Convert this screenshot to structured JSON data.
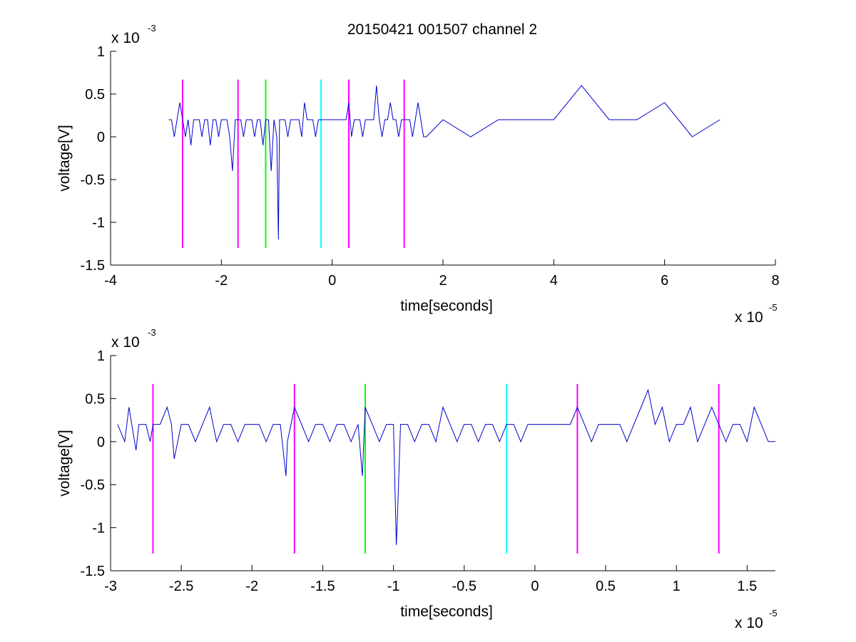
{
  "figure": {
    "title": "20150421 001507 channel 2"
  },
  "chart_data": [
    {
      "type": "line",
      "title": "20150421 001507 channel 2",
      "xlabel": "time[seconds]",
      "ylabel": "voltage[V]",
      "x_multiplier_label": "x 10",
      "x_multiplier_exp": "-5",
      "y_multiplier_label": "x 10",
      "y_multiplier_exp": "-3",
      "xlim": [
        -4,
        8
      ],
      "ylim": [
        -1.5,
        1
      ],
      "xticks": [
        "-4",
        "-2",
        "0",
        "2",
        "4",
        "6",
        "8"
      ],
      "yticks": [
        "-1.5",
        "-1",
        "-0.5",
        "0",
        "0.5",
        "1"
      ],
      "grid": false,
      "series": [
        {
          "color": "#0000cc",
          "x": [
            -2.95,
            -2.9,
            -2.85,
            -2.8,
            -2.75,
            -2.7,
            -2.65,
            -2.6,
            -2.55,
            -2.5,
            -2.45,
            -2.4,
            -2.35,
            -2.3,
            -2.25,
            -2.2,
            -2.15,
            -2.1,
            -2.05,
            -2.0,
            -1.95,
            -1.9,
            -1.85,
            -1.8,
            -1.75,
            -1.7,
            -1.65,
            -1.6,
            -1.55,
            -1.5,
            -1.45,
            -1.4,
            -1.35,
            -1.3,
            -1.25,
            -1.2,
            -1.15,
            -1.1,
            -1.05,
            -1.0,
            -0.97,
            -0.95,
            -0.9,
            -0.85,
            -0.8,
            -0.75,
            -0.7,
            -0.65,
            -0.6,
            -0.55,
            -0.5,
            -0.45,
            -0.4,
            -0.35,
            -0.3,
            -0.25,
            -0.2,
            -0.15,
            -0.1,
            -0.05,
            0.0,
            0.05,
            0.1,
            0.15,
            0.2,
            0.25,
            0.3,
            0.35,
            0.4,
            0.45,
            0.5,
            0.55,
            0.6,
            0.65,
            0.7,
            0.75,
            0.8,
            0.85,
            0.9,
            0.95,
            1.0,
            1.05,
            1.1,
            1.15,
            1.2,
            1.25,
            1.3,
            1.35,
            1.4,
            1.45,
            1.5,
            1.55,
            1.6,
            1.65,
            1.7
          ],
          "y": [
            0.2,
            0.2,
            0.0,
            0.2,
            0.4,
            0.2,
            0.0,
            0.2,
            -0.1,
            0.2,
            0.2,
            0.2,
            0.0,
            0.2,
            0.2,
            -0.1,
            0.2,
            0.2,
            0.0,
            0.2,
            0.2,
            0.2,
            0.0,
            -0.4,
            0.2,
            0.2,
            0.2,
            0.0,
            0.2,
            0.2,
            0.2,
            0.0,
            0.2,
            0.2,
            -0.1,
            0.2,
            0.2,
            -0.4,
            0.2,
            0.0,
            -1.2,
            0.2,
            0.2,
            0.2,
            0.0,
            0.2,
            0.2,
            0.2,
            0.2,
            0.0,
            0.4,
            0.2,
            0.2,
            0.2,
            0.0,
            0.2,
            0.2,
            0.2,
            0.2,
            0.2,
            0.2,
            0.2,
            0.2,
            0.2,
            0.2,
            0.2,
            0.4,
            0.0,
            0.2,
            0.2,
            0.2,
            0.0,
            0.2,
            0.2,
            0.2,
            0.2,
            0.6,
            0.2,
            0.0,
            0.2,
            0.2,
            0.4,
            0.2,
            0.2,
            0.0,
            0.2,
            0.2,
            0.2,
            0.2,
            0.0,
            0.2,
            0.4,
            0.2,
            0.0,
            0.0
          ]
        }
      ],
      "markers": [
        {
          "x": -2.7,
          "color": "#ff00ff"
        },
        {
          "x": -1.7,
          "color": "#ff00ff"
        },
        {
          "x": -1.2,
          "color": "#00ff00"
        },
        {
          "x": -0.2,
          "color": "#00ffff"
        },
        {
          "x": 0.3,
          "color": "#ff00ff"
        },
        {
          "x": 1.3,
          "color": "#ff00ff"
        }
      ],
      "marker_range": [
        -1.3,
        0.67
      ],
      "extra_x": [
        2.0,
        2.5,
        3.0,
        3.5,
        4.0,
        4.5,
        5.0,
        5.5,
        6.0,
        6.5,
        7.0
      ],
      "extra_y": [
        0.2,
        0.0,
        0.2,
        0.2,
        0.2,
        0.6,
        0.2,
        0.2,
        0.4,
        0.0,
        0.2
      ]
    },
    {
      "type": "line",
      "xlabel": "time[seconds]",
      "ylabel": "voltage[V]",
      "x_multiplier_label": "x 10",
      "x_multiplier_exp": "-5",
      "y_multiplier_label": "x 10",
      "y_multiplier_exp": "-3",
      "xlim": [
        -3.0,
        1.7
      ],
      "ylim": [
        -1.5,
        1
      ],
      "xticks": [
        "-3",
        "-2.5",
        "-2",
        "-1.5",
        "-1",
        "-0.5",
        "0",
        "0.5",
        "1",
        "1.5"
      ],
      "yticks": [
        "-1.5",
        "-1",
        "-0.5",
        "0",
        "0.5",
        "1"
      ],
      "grid": false,
      "series": [
        {
          "color": "#0000cc",
          "x": [
            -2.95,
            -2.9,
            -2.87,
            -2.85,
            -2.82,
            -2.8,
            -2.75,
            -2.72,
            -2.7,
            -2.65,
            -2.6,
            -2.57,
            -2.55,
            -2.5,
            -2.45,
            -2.4,
            -2.35,
            -2.3,
            -2.25,
            -2.2,
            -2.15,
            -2.1,
            -2.05,
            -2.0,
            -1.95,
            -1.9,
            -1.85,
            -1.8,
            -1.76,
            -1.75,
            -1.7,
            -1.65,
            -1.6,
            -1.55,
            -1.5,
            -1.45,
            -1.4,
            -1.35,
            -1.3,
            -1.25,
            -1.22,
            -1.2,
            -1.15,
            -1.1,
            -1.05,
            -1.0,
            -0.99,
            -0.98,
            -0.97,
            -0.95,
            -0.9,
            -0.85,
            -0.8,
            -0.75,
            -0.7,
            -0.65,
            -0.6,
            -0.55,
            -0.5,
            -0.45,
            -0.4,
            -0.35,
            -0.3,
            -0.25,
            -0.2,
            -0.15,
            -0.1,
            -0.05,
            0.0,
            0.05,
            0.1,
            0.15,
            0.2,
            0.25,
            0.3,
            0.35,
            0.4,
            0.45,
            0.5,
            0.55,
            0.6,
            0.65,
            0.7,
            0.75,
            0.8,
            0.85,
            0.9,
            0.95,
            1.0,
            1.05,
            1.1,
            1.15,
            1.2,
            1.25,
            1.3,
            1.35,
            1.4,
            1.45,
            1.5,
            1.55,
            1.6,
            1.65,
            1.7
          ],
          "y": [
            0.2,
            0.0,
            0.4,
            0.2,
            -0.1,
            0.2,
            0.2,
            0.0,
            0.2,
            0.2,
            0.4,
            0.2,
            -0.2,
            0.2,
            0.2,
            0.0,
            0.2,
            0.4,
            0.0,
            0.2,
            0.2,
            0.0,
            0.2,
            0.2,
            0.2,
            0.0,
            0.2,
            0.2,
            -0.4,
            0.0,
            0.4,
            0.2,
            0.0,
            0.2,
            0.2,
            0.0,
            0.2,
            0.2,
            0.0,
            0.2,
            -0.4,
            0.4,
            0.2,
            0.0,
            0.2,
            0.2,
            -0.5,
            -1.2,
            -0.8,
            0.2,
            0.2,
            0.0,
            0.2,
            0.2,
            0.0,
            0.4,
            0.2,
            0.0,
            0.2,
            0.2,
            0.0,
            0.2,
            0.2,
            0.0,
            0.2,
            0.2,
            0.0,
            0.2,
            0.2,
            0.2,
            0.2,
            0.2,
            0.2,
            0.2,
            0.4,
            0.2,
            0.0,
            0.2,
            0.2,
            0.2,
            0.2,
            0.0,
            0.2,
            0.4,
            0.6,
            0.2,
            0.4,
            0.0,
            0.2,
            0.2,
            0.4,
            0.0,
            0.2,
            0.4,
            0.2,
            0.0,
            0.2,
            0.2,
            0.0,
            0.4,
            0.2,
            0.0,
            0.0
          ]
        }
      ],
      "markers": [
        {
          "x": -2.7,
          "color": "#ff00ff"
        },
        {
          "x": -1.7,
          "color": "#ff00ff"
        },
        {
          "x": -1.2,
          "color": "#00ff00"
        },
        {
          "x": -0.2,
          "color": "#00ffff"
        },
        {
          "x": 0.3,
          "color": "#ff00ff"
        },
        {
          "x": 1.3,
          "color": "#ff00ff"
        }
      ],
      "marker_range": [
        -1.3,
        0.67
      ]
    }
  ]
}
